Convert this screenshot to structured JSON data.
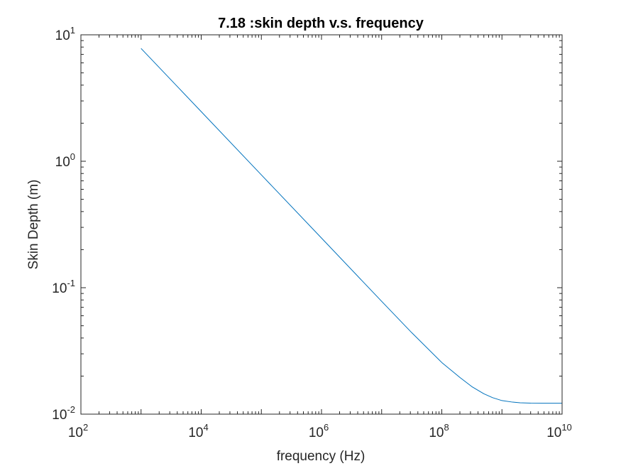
{
  "chart_data": {
    "type": "line",
    "title": "7.18 :skin depth v.s. frequency",
    "xlabel": "frequency (Hz)",
    "ylabel": "Skin Depth (m)",
    "xscale": "log",
    "yscale": "log",
    "xlim": [
      100,
      10000000000
    ],
    "ylim": [
      0.01,
      10
    ],
    "grid": false,
    "box": true,
    "xticks": [
      {
        "base": "10",
        "exp": "2"
      },
      {
        "base": "10",
        "exp": "4"
      },
      {
        "base": "10",
        "exp": "6"
      },
      {
        "base": "10",
        "exp": "8"
      },
      {
        "base": "10",
        "exp": "10"
      }
    ],
    "yticks": [
      {
        "base": "10",
        "exp": "-2"
      },
      {
        "base": "10",
        "exp": "-1"
      },
      {
        "base": "10",
        "exp": "0"
      },
      {
        "base": "10",
        "exp": "1"
      }
    ],
    "series": [
      {
        "color": "#0072BD",
        "x": [
          1000,
          10000,
          100000,
          1000000,
          10000000,
          31600000,
          100000000,
          200000000,
          316000000,
          500000000,
          700000000,
          1000000000,
          1500000000,
          2000000000,
          3000000000,
          5000000000,
          10000000000
        ],
        "y": [
          7.8,
          2.47,
          0.78,
          0.247,
          0.078,
          0.0441,
          0.0256,
          0.0195,
          0.0165,
          0.0145,
          0.0135,
          0.0128,
          0.01245,
          0.0123,
          0.01222,
          0.0122,
          0.0122
        ]
      }
    ]
  }
}
